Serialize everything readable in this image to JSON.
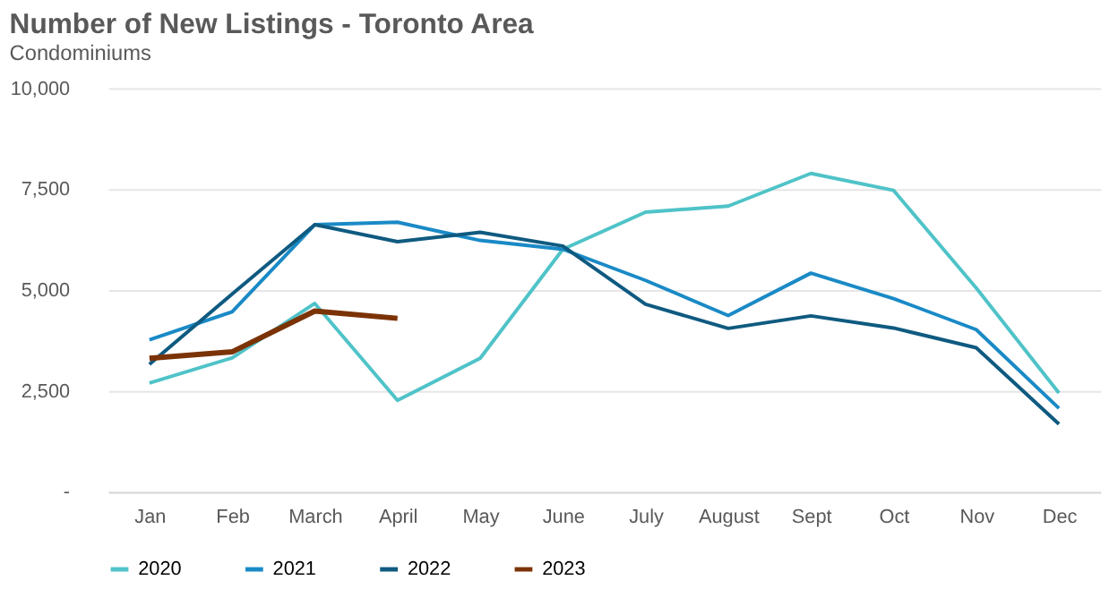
{
  "chart_data": {
    "type": "line",
    "title": "Number of New Listings - Toronto Area",
    "subtitle": "Condominiums",
    "categories": [
      "Jan",
      "Feb",
      "March",
      "April",
      "May",
      "June",
      "July",
      "August",
      "Sept",
      "Oct",
      "Nov",
      "Dec"
    ],
    "series": [
      {
        "name": "2020",
        "color": "#4fc3c8",
        "values": [
          2700,
          3320,
          4670,
          2270,
          3310,
          6010,
          6930,
          7080,
          7890,
          7470,
          5050,
          2450
        ]
      },
      {
        "name": "2021",
        "color": "#1a8ac6",
        "values": [
          3770,
          4460,
          6620,
          6680,
          6230,
          6010,
          5240,
          4370,
          5420,
          4790,
          4020,
          2070
        ]
      },
      {
        "name": "2022",
        "color": "#0f5a80",
        "values": [
          3160,
          4900,
          6620,
          6200,
          6430,
          6090,
          4650,
          4050,
          4360,
          4060,
          3570,
          1680
        ]
      },
      {
        "name": "2023",
        "color": "#7b3306",
        "values": [
          3310,
          3470,
          4480,
          4300,
          null,
          null,
          null,
          null,
          null,
          null,
          null,
          null
        ]
      }
    ],
    "ylim": [
      0,
      10000
    ],
    "yticks": [
      {
        "value": 0,
        "label": "-"
      },
      {
        "value": 2500,
        "label": "2,500"
      },
      {
        "value": 5000,
        "label": "5,000"
      },
      {
        "value": 7500,
        "label": "7,500"
      },
      {
        "value": 10000,
        "label": "10,000"
      }
    ],
    "grid": "y",
    "legend": "bottom",
    "marker": "none",
    "line_style": "solid"
  }
}
